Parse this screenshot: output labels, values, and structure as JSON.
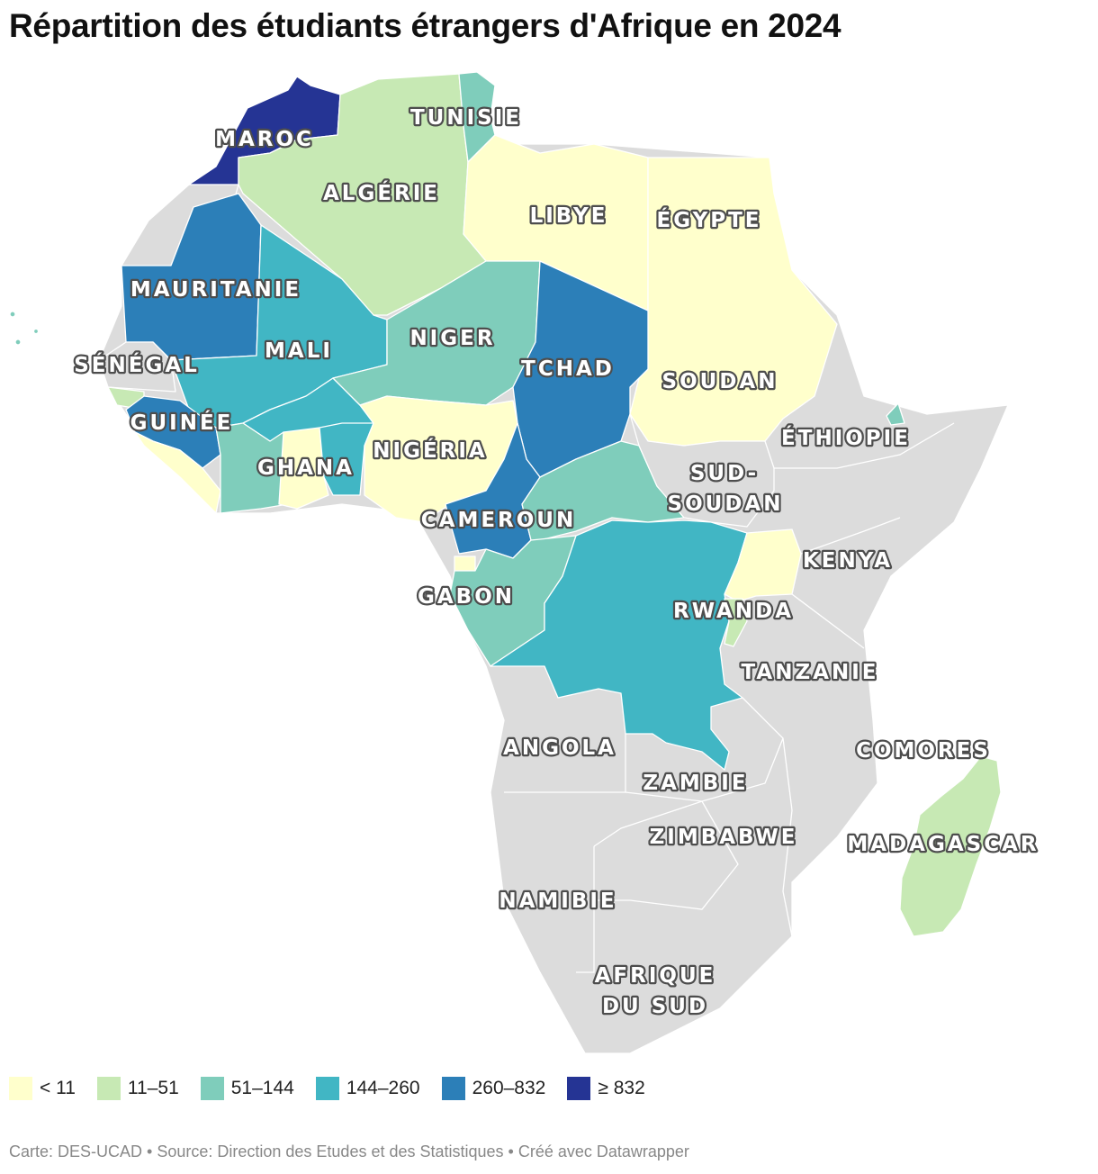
{
  "title": "Répartition des étudiants étrangers d'Afrique en 2024",
  "colors": {
    "no_data": "#dcdcdc",
    "lt11": "#ffffcc",
    "c11_51": "#c7e9b4",
    "c51_144": "#7fcdbb",
    "c144_260": "#41b6c4",
    "c260_832": "#2c7fb8",
    "ge832": "#253494"
  },
  "legend": [
    {
      "label": "< 11",
      "color": "#ffffcc"
    },
    {
      "label": "11–51",
      "color": "#c7e9b4"
    },
    {
      "label": "51–144",
      "color": "#7fcdbb"
    },
    {
      "label": "144–260",
      "color": "#41b6c4"
    },
    {
      "label": "260–832",
      "color": "#2c7fb8"
    },
    {
      "label": "≥ 832",
      "color": "#253494"
    }
  ],
  "labels": {
    "maroc": "MAROC",
    "tunisie": "TUNISIE",
    "algerie": "ALGÉRIE",
    "libye": "LIBYE",
    "egypte": "ÉGYPTE",
    "mauritanie": "MAURITANIE",
    "mali": "MALI",
    "niger": "NIGER",
    "tchad": "TCHAD",
    "soudan": "SOUDAN",
    "senegal": "SÉNÉGAL",
    "guinee": "GUINÉE",
    "ghana": "GHANA",
    "nigeria": "NIGÉRIA",
    "ethiopie": "ÉTHIOPIE",
    "sud_soudan_1": "SUD-",
    "sud_soudan_2": "SOUDAN",
    "cameroun": "CAMEROUN",
    "kenya": "KENYA",
    "gabon": "GABON",
    "rwanda": "RWANDA",
    "tanzanie": "TANZANIE",
    "angola": "ANGOLA",
    "comores": "COMORES",
    "zambie": "ZAMBIE",
    "zimbabwe": "ZIMBABWE",
    "madagascar": "MADAGASCAR",
    "namibie": "NAMIBIE",
    "afrique_du_sud_1": "AFRIQUE",
    "afrique_du_sud_2": "DU SUD"
  },
  "footer": "Carte: DES-UCAD • Source: Direction des Etudes et des Statistiques • Créé avec Datawrapper"
}
